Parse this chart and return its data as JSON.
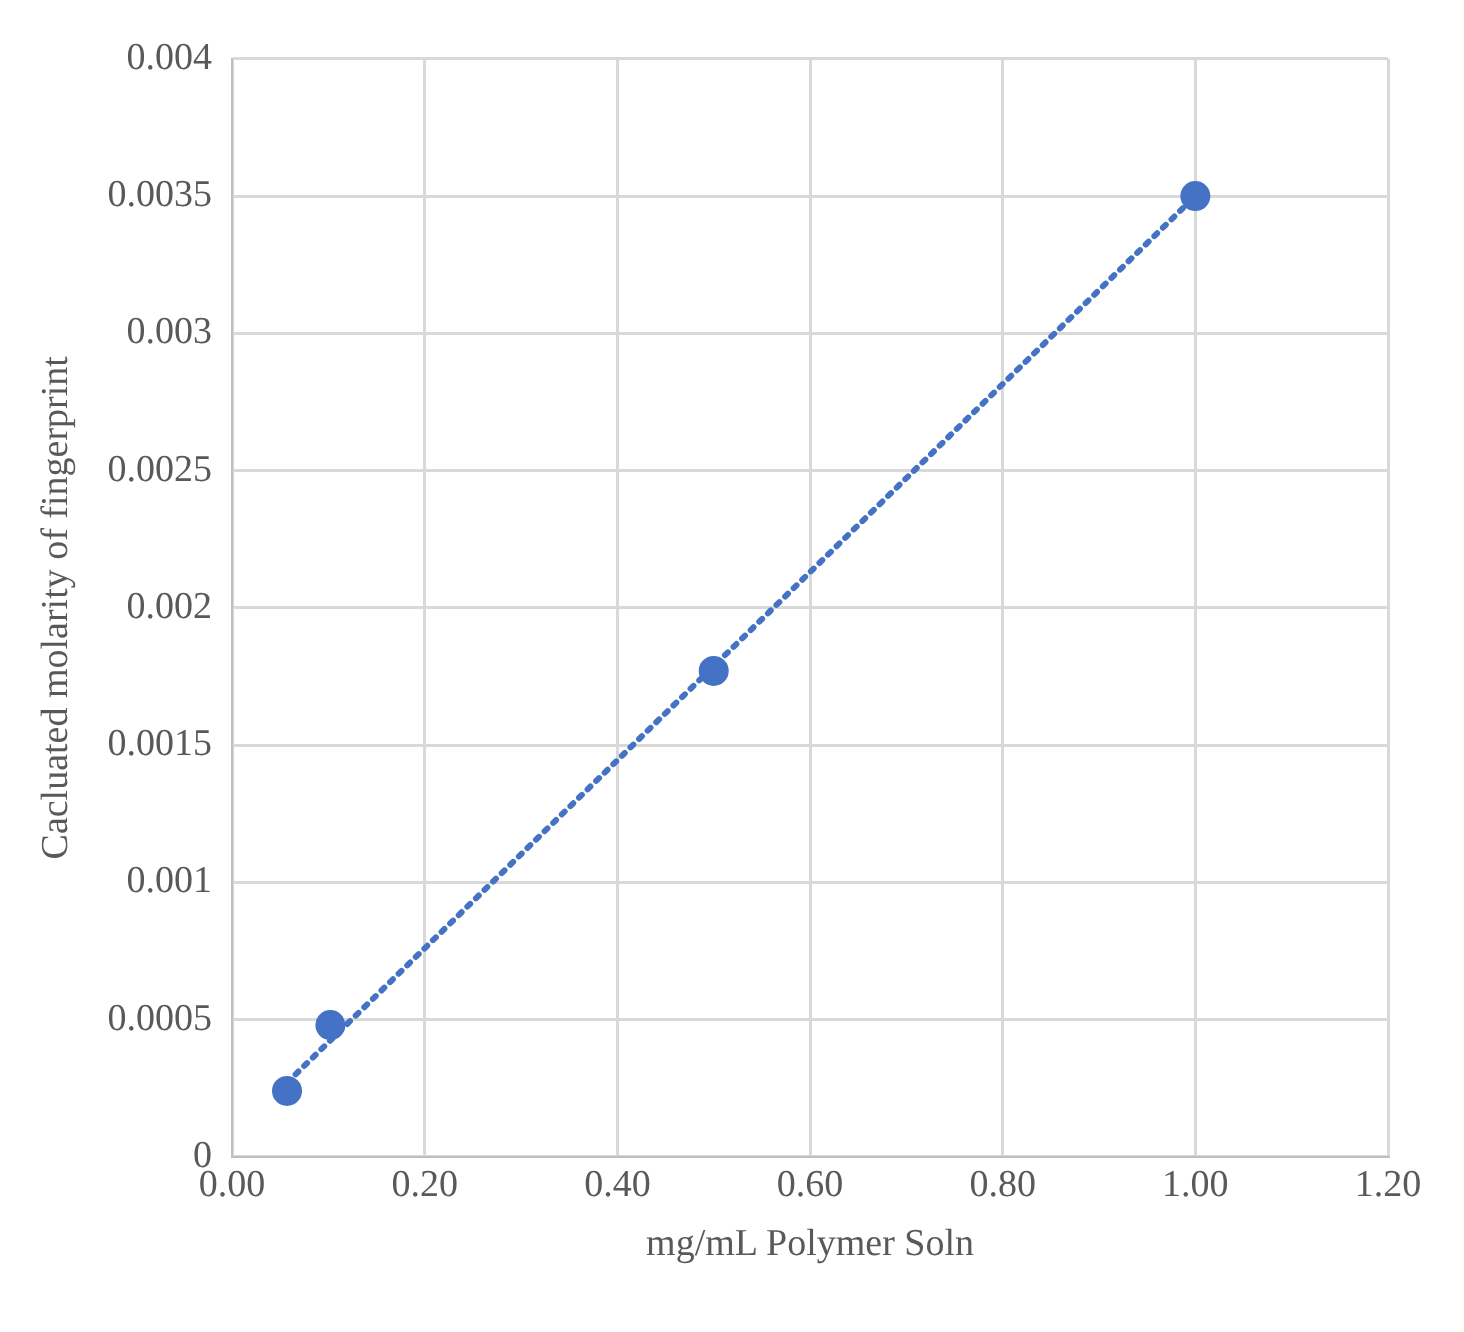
{
  "chart_data": {
    "type": "scatter",
    "xlabel": "mg/mL Polymer Soln",
    "ylabel": "Cacluated molarity of fingerprint",
    "series": [
      {
        "color": "#4472c4",
        "marker": "circle",
        "x": [
          0.057,
          0.102,
          0.5,
          1.0
        ],
        "values": [
          0.00024,
          0.00048,
          0.00177,
          0.0035
        ]
      },
      {
        "type": "line",
        "color": "#4472c4",
        "line_style": "dotted",
        "marker": "none",
        "x": [
          0.057,
          1.0
        ],
        "values": [
          0.00027,
          0.0035
        ]
      }
    ],
    "xlim": [
      0,
      1.2
    ],
    "xticks": [
      {
        "value": 0,
        "label": "0.00"
      },
      {
        "value": 0.2,
        "label": "0.20"
      },
      {
        "value": 0.4,
        "label": "0.40"
      },
      {
        "value": 0.6,
        "label": "0.60"
      },
      {
        "value": 0.8,
        "label": "0.80"
      },
      {
        "value": 1.0,
        "label": "1.00"
      },
      {
        "value": 1.2,
        "label": "1.20"
      }
    ],
    "ylim": [
      0,
      0.004
    ],
    "yticks": [
      0,
      0.0005,
      0.001,
      0.0015,
      0.002,
      0.0025,
      0.003,
      0.0035,
      0.004
    ],
    "grid": true,
    "legend": false
  }
}
